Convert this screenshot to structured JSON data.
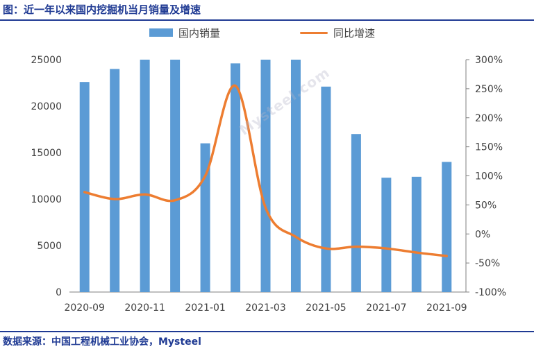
{
  "title": "图：近一年以来国内挖掘机当月销量及增速",
  "source": "数据来源：中国工程机械工业协会，Mysteel",
  "watermark": "Mysteel.com",
  "colors": {
    "bar": "#5b9bd5",
    "line": "#ed7d31",
    "heading": "#1f3a93",
    "axis": "#7f7f7f",
    "text": "#404040"
  },
  "chart_data": {
    "type": "bar",
    "categories": [
      "2020-09",
      "2020-10",
      "2020-11",
      "2020-12",
      "2021-01",
      "2021-02",
      "2021-03",
      "2021-04",
      "2021-05",
      "2021-06",
      "2021-07",
      "2021-08",
      "2021-09"
    ],
    "x_tick_labels": [
      "2020-09",
      "2020-11",
      "2021-01",
      "2021-03",
      "2021-05",
      "2021-07",
      "2021-09"
    ],
    "series": [
      {
        "name": "国内销量",
        "type": "bar",
        "axis": "left",
        "values": [
          22600,
          24000,
          25000,
          25000,
          16000,
          24600,
          25000,
          25000,
          22100,
          17000,
          12300,
          12400,
          14000
        ]
      },
      {
        "name": "同比增速",
        "type": "line",
        "axis": "right",
        "unit": "%",
        "values": [
          72,
          60,
          68,
          58,
          100,
          255,
          45,
          -5,
          -25,
          -22,
          -25,
          -32,
          -38
        ]
      }
    ],
    "y_left": {
      "ylim": [
        0,
        25000
      ],
      "ticks": [
        "0",
        "5000",
        "10000",
        "15000",
        "20000",
        "25000"
      ]
    },
    "y_right": {
      "ylim": [
        -100,
        300
      ],
      "ticks": [
        "-100%",
        "-50%",
        "0%",
        "50%",
        "100%",
        "150%",
        "200%",
        "250%",
        "300%"
      ]
    },
    "legend_position": "top-center",
    "grid": false
  }
}
